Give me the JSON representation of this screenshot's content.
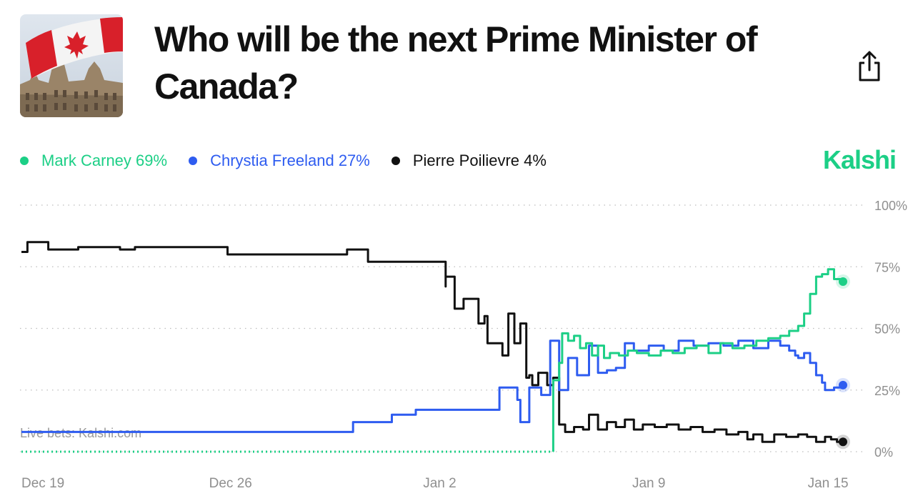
{
  "header": {
    "title": "Who will be the next Prime Minister of Canada?",
    "thumbnail_icon": "canada-flag-parliament-image",
    "share_icon": "share-icon"
  },
  "brand": {
    "name": "Kalshi",
    "color": "#1ccf86"
  },
  "legend": [
    {
      "label": "Mark Carney 69%",
      "color": "#1ccf86"
    },
    {
      "label": "Chrystia Freeland 27%",
      "color": "#2e5cf0"
    },
    {
      "label": "Pierre Poilievre 4%",
      "color": "#111111"
    }
  ],
  "chart_data": {
    "type": "line",
    "watermark": "Live bets: Kalshi.com",
    "x_ticks": [
      "Dec 19",
      "Dec 26",
      "Jan 2",
      "Jan 9",
      "Jan 15"
    ],
    "x_tick_days": [
      0,
      7,
      14,
      21,
      27
    ],
    "x_range_days": [
      0,
      27.5
    ],
    "y_ticks": [
      "100%",
      "75%",
      "50%",
      "25%",
      "0%"
    ],
    "y_tick_values": [
      100,
      75,
      50,
      25,
      0
    ],
    "ylim": [
      0,
      100
    ],
    "grid": true,
    "series": [
      {
        "name": "Pierre Poilievre",
        "color": "#111111",
        "x": [
          0,
          0.2,
          0.2,
          0.9,
          0.9,
          1.9,
          1.9,
          3.3,
          3.3,
          3.8,
          3.8,
          6.9,
          6.9,
          10.9,
          10.9,
          11.6,
          11.6,
          12.4,
          12.4,
          14.2,
          14.2,
          14.4,
          14.5,
          14.8,
          15.2,
          15.3,
          15.5,
          15.6,
          16.0,
          16.1,
          16.3,
          16.5,
          16.7,
          16.9,
          17.0,
          17.1,
          17.3,
          17.6,
          17.8,
          18.0,
          18.2,
          18.5,
          18.8,
          19.0,
          19.3,
          19.6,
          19.9,
          20.2,
          20.5,
          20.8,
          21.2,
          21.6,
          22.0,
          22.4,
          22.8,
          23.2,
          23.6,
          24.0,
          24.3,
          24.5,
          24.8,
          25.2,
          25.6,
          26.0,
          26.3,
          26.6,
          26.9,
          27.1,
          27.3,
          27.5
        ],
        "values": [
          81,
          81,
          85,
          85,
          82,
          82,
          83,
          83,
          82,
          82,
          83,
          83,
          80,
          80,
          82,
          82,
          77,
          77,
          77,
          67,
          71,
          71,
          58,
          62,
          62,
          52,
          55,
          44,
          44,
          39,
          56,
          44,
          52,
          30,
          31,
          27,
          32,
          27,
          30,
          11,
          8,
          10,
          9,
          15,
          9,
          12,
          10,
          13,
          9,
          11,
          10,
          11,
          9,
          10,
          8,
          9,
          7,
          8,
          5,
          7,
          4,
          7,
          6,
          7,
          6,
          4,
          6,
          5,
          4,
          4
        ]
      },
      {
        "name": "Chrystia Freeland",
        "color": "#2e5cf0",
        "x": [
          0,
          10.9,
          11.1,
          12.4,
          13.2,
          15.7,
          16.0,
          16.3,
          16.6,
          16.7,
          17.0,
          17.4,
          17.7,
          18.0,
          18.3,
          18.6,
          19.0,
          19.3,
          19.6,
          19.9,
          20.2,
          20.5,
          21.0,
          21.5,
          22.0,
          22.5,
          23.0,
          23.5,
          24.0,
          24.5,
          25.0,
          25.4,
          25.7,
          25.9,
          26.0,
          26.2,
          26.4,
          26.6,
          26.8,
          26.9,
          27.2,
          27.5
        ],
        "values": [
          8,
          8,
          12,
          15,
          17,
          17,
          26,
          26,
          21,
          12,
          26,
          23,
          45,
          25,
          38,
          31,
          43,
          32,
          33,
          34,
          44,
          41,
          43,
          41,
          45,
          43,
          44,
          43,
          45,
          42,
          45,
          43,
          41,
          39,
          38,
          40,
          36,
          31,
          28,
          25,
          26,
          27
        ]
      },
      {
        "name": "Mark Carney",
        "color": "#1ccf86",
        "x": [
          0,
          17.8,
          17.8,
          18.0,
          18.1,
          18.3,
          18.5,
          18.7,
          18.9,
          19.1,
          19.3,
          19.5,
          19.7,
          20.0,
          20.3,
          20.6,
          21.0,
          21.4,
          21.8,
          22.2,
          22.6,
          23.0,
          23.4,
          23.8,
          24.2,
          24.6,
          25.0,
          25.4,
          25.7,
          26.0,
          26.2,
          26.4,
          26.6,
          26.8,
          27.0,
          27.2,
          27.5
        ],
        "values": [
          0,
          0,
          29,
          36,
          48,
          45,
          47,
          42,
          44,
          39,
          43,
          38,
          40,
          39,
          41,
          40,
          39,
          41,
          40,
          42,
          43,
          40,
          44,
          42,
          43,
          45,
          46,
          47,
          49,
          51,
          56,
          64,
          71,
          72,
          74,
          70,
          69
        ]
      }
    ]
  }
}
